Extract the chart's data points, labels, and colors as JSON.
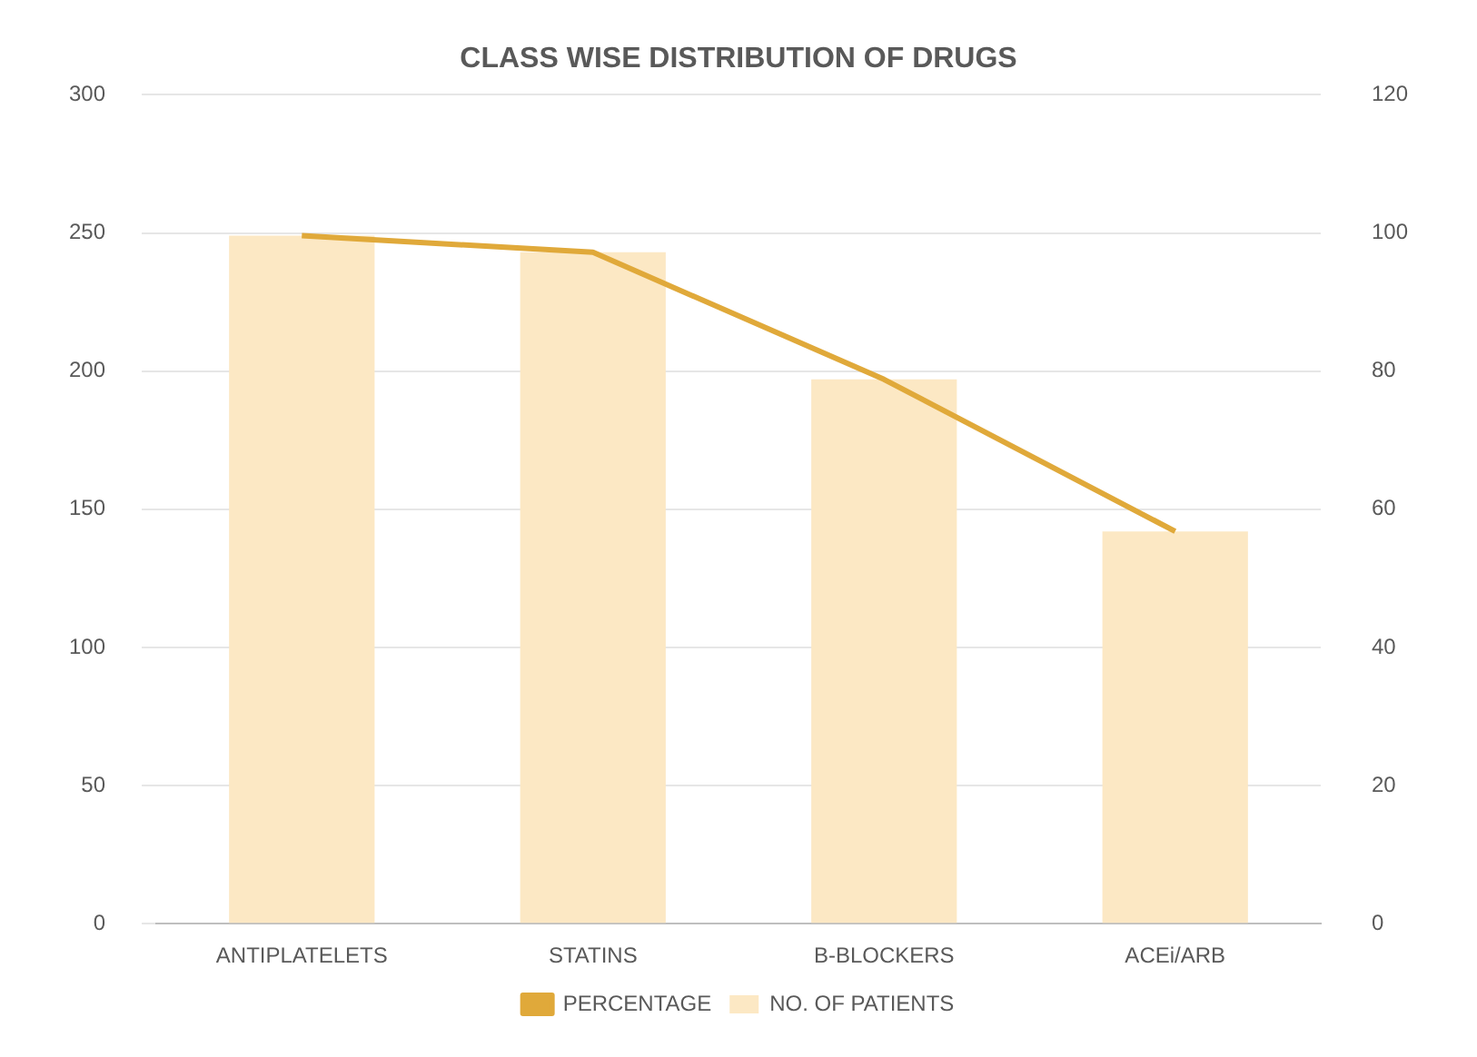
{
  "chart_data": {
    "type": "bar",
    "title": "CLASS WISE DISTRIBUTION OF DRUGS",
    "categories": [
      "ANTIPLATELETS",
      "STATINS",
      "B-BLOCKERS",
      "ACEi/ARB"
    ],
    "series": [
      {
        "name": "NO. OF PATIENTS",
        "color": "#fce8c4",
        "values": [
          249,
          243,
          197,
          142
        ]
      },
      {
        "name": "PERCENTAGE",
        "type": "line",
        "axis": "y2",
        "color": "#e0a93a",
        "values": [
          99.6,
          97.2,
          78.8,
          56.8
        ],
        "marker": "none"
      }
    ],
    "ylim": [
      0,
      300
    ],
    "yticks": [
      0,
      50,
      100,
      150,
      200,
      250,
      300
    ],
    "y2lim": [
      0,
      120
    ],
    "y2ticks": [
      0,
      20,
      40,
      60,
      80,
      100,
      120
    ],
    "grid": "y",
    "legend": "bottom"
  }
}
